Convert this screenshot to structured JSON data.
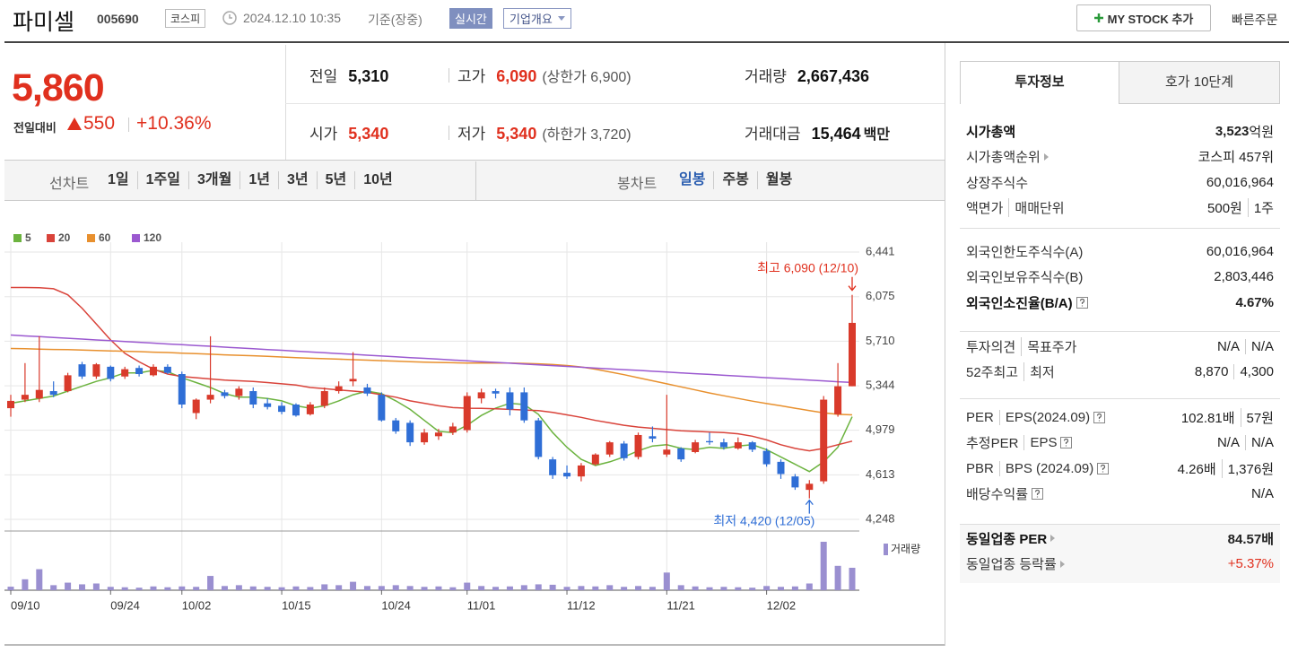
{
  "header": {
    "name": "파미셀",
    "code": "005690",
    "market": "코스피",
    "datetime": "2024.12.10 10:35",
    "basis": "기준(장중)",
    "realtime": "실시간",
    "company": "기업개요",
    "my_stock": "MY STOCK 추가",
    "quick_order": "빠른주문"
  },
  "quote": {
    "price": "5,860",
    "change_label": "전일대비",
    "change": "550",
    "rate": "+10.36%"
  },
  "stats": [
    [
      {
        "label": "전일",
        "value": "5,310"
      },
      {
        "label": "고가",
        "value": "6,090",
        "sub": "(상한가 6,900)",
        "color": "#e0301e"
      },
      {
        "label": "거래량",
        "value": "2,667,436"
      }
    ],
    [
      {
        "label": "시가",
        "value": "5,340",
        "color": "#e0301e"
      },
      {
        "label": "저가",
        "value": "5,340",
        "sub": "(하한가 3,720)",
        "color": "#e0301e"
      },
      {
        "label": "거래대금",
        "value": "15,464",
        "unit": "백만"
      }
    ]
  ],
  "period_tabs": {
    "title": "선차트",
    "items": [
      "1일",
      "1주일",
      "3개월",
      "1년",
      "3년",
      "5년",
      "10년"
    ]
  },
  "candle_tabs": {
    "title": "봉차트",
    "items": [
      "일봉",
      "주봉",
      "월봉"
    ],
    "active": 0
  },
  "chart_data": {
    "type": "candlestick",
    "categories": [
      "09/10",
      null,
      null,
      null,
      null,
      null,
      null,
      "09/24",
      null,
      null,
      null,
      null,
      "10/02",
      null,
      null,
      null,
      null,
      null,
      null,
      "10/15",
      null,
      null,
      null,
      null,
      null,
      null,
      "10/24",
      null,
      null,
      null,
      null,
      null,
      "11/01",
      null,
      null,
      null,
      null,
      null,
      null,
      "11/12",
      null,
      null,
      null,
      null,
      null,
      null,
      "11/21",
      null,
      null,
      null,
      null,
      null,
      null,
      "12/02",
      null,
      null,
      null,
      null,
      null,
      null
    ],
    "open": [
      5160,
      5230,
      5240,
      5300,
      5300,
      5520,
      5420,
      5500,
      5420,
      5490,
      5430,
      5500,
      5440,
      5120,
      5230,
      5290,
      5260,
      5300,
      5200,
      5180,
      5190,
      5110,
      5180,
      5300,
      5380,
      5330,
      5270,
      5060,
      5040,
      4880,
      4930,
      4960,
      4980,
      5240,
      5300,
      5290,
      5290,
      5060,
      4740,
      4630,
      4600,
      4700,
      4780,
      4870,
      4760,
      4930,
      4780,
      4830,
      4800,
      4890,
      4880,
      4830,
      4880,
      4810,
      4720,
      4600,
      4490,
      4560,
      5110,
      5340
    ],
    "high": [
      5270,
      5530,
      5750,
      5380,
      5450,
      5540,
      5530,
      5510,
      5500,
      5510,
      5520,
      5520,
      5460,
      5240,
      5750,
      5310,
      5340,
      5330,
      5240,
      5210,
      5200,
      5210,
      5330,
      5380,
      5620,
      5360,
      5290,
      5080,
      5060,
      4990,
      4990,
      5040,
      5290,
      5320,
      5320,
      5330,
      5330,
      5080,
      4760,
      4690,
      4710,
      4790,
      4890,
      4890,
      4960,
      5010,
      5270,
      4840,
      4900,
      4960,
      4910,
      4920,
      4890,
      4830,
      4740,
      4620,
      4570,
      5260,
      5530,
      6090
    ],
    "low": [
      5090,
      5210,
      5210,
      5250,
      5290,
      5400,
      5400,
      5380,
      5400,
      5420,
      5420,
      5440,
      5160,
      5070,
      5200,
      5240,
      5230,
      5160,
      5150,
      5110,
      5090,
      5100,
      5160,
      5280,
      5340,
      5260,
      5050,
      4950,
      4850,
      4860,
      4900,
      4940,
      4960,
      5200,
      5240,
      5100,
      5040,
      4740,
      4580,
      4580,
      4560,
      4690,
      4760,
      4730,
      4740,
      4880,
      4760,
      4720,
      4790,
      4860,
      4820,
      4820,
      4800,
      4680,
      4580,
      4490,
      4420,
      4540,
      5090,
      5340
    ],
    "close": [
      5220,
      5270,
      5310,
      5270,
      5430,
      5420,
      5520,
      5400,
      5480,
      5440,
      5500,
      5450,
      5190,
      5230,
      5270,
      5260,
      5320,
      5190,
      5170,
      5130,
      5100,
      5190,
      5300,
      5340,
      5400,
      5280,
      5060,
      4970,
      4880,
      4960,
      4960,
      5010,
      5260,
      5290,
      5280,
      5150,
      5060,
      4760,
      4610,
      4600,
      4690,
      4780,
      4880,
      4750,
      4940,
      4910,
      4820,
      4740,
      4880,
      4880,
      4840,
      4880,
      4820,
      4700,
      4620,
      4510,
      4540,
      5230,
      5340,
      5860
    ],
    "up_color": "#d93a2b",
    "down_color": "#2f6ed6",
    "moving_averages": [
      {
        "name": "5",
        "color": "#6cb33f",
        "values": [
          5200,
          5220,
          5240,
          5260,
          5300,
          5340,
          5380,
          5410,
          5450,
          5450,
          5470,
          5460,
          5410,
          5370,
          5330,
          5280,
          5250,
          5250,
          5240,
          5220,
          5180,
          5160,
          5180,
          5220,
          5270,
          5300,
          5280,
          5220,
          5150,
          5060,
          4970,
          4960,
          5020,
          5100,
          5160,
          5200,
          5190,
          5110,
          4960,
          4840,
          4740,
          4690,
          4720,
          4760,
          4810,
          4850,
          4860,
          4830,
          4820,
          4840,
          4830,
          4850,
          4860,
          4820,
          4760,
          4700,
          4640,
          4720,
          4840,
          5090
        ]
      },
      {
        "name": "20",
        "color": "#d9433a",
        "values": [
          6150,
          6150,
          6148,
          6140,
          6090,
          5980,
          5850,
          5720,
          5610,
          5540,
          5480,
          5440,
          5420,
          5410,
          5400,
          5390,
          5385,
          5380,
          5370,
          5360,
          5350,
          5330,
          5320,
          5310,
          5300,
          5290,
          5270,
          5250,
          5220,
          5200,
          5180,
          5165,
          5160,
          5158,
          5155,
          5150,
          5145,
          5140,
          5125,
          5105,
          5085,
          5060,
          5040,
          5020,
          5005,
          4995,
          4985,
          4975,
          4970,
          4965,
          4960,
          4950,
          4930,
          4900,
          4860,
          4830,
          4810,
          4830,
          4860,
          4890
        ]
      },
      {
        "name": "60",
        "color": "#e8902e",
        "values": [
          5650,
          5648,
          5645,
          5642,
          5640,
          5637,
          5634,
          5630,
          5627,
          5624,
          5620,
          5617,
          5612,
          5608,
          5603,
          5598,
          5594,
          5590,
          5585,
          5580,
          5575,
          5570,
          5566,
          5562,
          5558,
          5554,
          5550,
          5546,
          5542,
          5538,
          5535,
          5533,
          5531,
          5530,
          5530,
          5530,
          5528,
          5524,
          5518,
          5510,
          5498,
          5480,
          5458,
          5435,
          5410,
          5385,
          5360,
          5335,
          5310,
          5285,
          5262,
          5240,
          5218,
          5198,
          5180,
          5160,
          5140,
          5122,
          5110,
          5105
        ]
      },
      {
        "name": "120",
        "color": "#9b59d0",
        "values": [
          5760,
          5753,
          5747,
          5740,
          5734,
          5727,
          5720,
          5714,
          5707,
          5701,
          5694,
          5687,
          5681,
          5674,
          5668,
          5661,
          5654,
          5648,
          5641,
          5635,
          5628,
          5621,
          5615,
          5608,
          5602,
          5595,
          5588,
          5582,
          5575,
          5569,
          5562,
          5555,
          5549,
          5542,
          5536,
          5529,
          5522,
          5516,
          5509,
          5503,
          5496,
          5489,
          5483,
          5476,
          5470,
          5463,
          5456,
          5450,
          5443,
          5437,
          5430,
          5423,
          5417,
          5410,
          5404,
          5397,
          5390,
          5384,
          5377,
          5371
        ]
      }
    ],
    "volume": {
      "name": "거래량",
      "color": "#9a8fd0",
      "ylim": [
        0,
        6400000
      ],
      "values": [
        420000,
        1300000,
        2500000,
        600000,
        900000,
        700000,
        800000,
        400000,
        350000,
        300000,
        450000,
        350000,
        450000,
        400000,
        1700000,
        500000,
        600000,
        450000,
        400000,
        350000,
        450000,
        380000,
        700000,
        600000,
        1000000,
        500000,
        500000,
        600000,
        500000,
        400000,
        450000,
        350000,
        900000,
        500000,
        400000,
        450000,
        600000,
        700000,
        650000,
        400000,
        500000,
        450000,
        600000,
        400000,
        500000,
        400000,
        2100000,
        600000,
        450000,
        350000,
        400000,
        350000,
        300000,
        500000,
        400000,
        450000,
        800000,
        5760000,
        2900000,
        2667436
      ]
    },
    "ylim": [
      4248,
      6441
    ],
    "yticks": [
      {
        "value": 6441,
        "label": "6,441"
      },
      {
        "value": 6075,
        "label": "6,075"
      },
      {
        "value": 5710,
        "label": "5,710"
      },
      {
        "value": 5344,
        "label": "5,344"
      },
      {
        "value": 4979,
        "label": "4,979"
      },
      {
        "value": 4613,
        "label": "4,613"
      },
      {
        "value": 4248,
        "label": "4,248"
      }
    ],
    "grid": true,
    "annotations": {
      "high": {
        "text": "최고 6,090 (12/10)",
        "color": "#e0301e"
      },
      "low": {
        "text": "최저 4,420 (12/05)",
        "color": "#2f6ed6"
      }
    }
  },
  "info_tabs": [
    "투자정보",
    "호가 10단계"
  ],
  "info": [
    [
      {
        "label": [
          "시가총액"
        ],
        "value": [
          "3,523"
        ],
        "unit": "억원",
        "bold": true
      },
      {
        "label": [
          "시가총액순위"
        ],
        "arrow": true,
        "value": [
          "코스피 457위"
        ]
      },
      {
        "label": [
          "상장주식수"
        ],
        "value": [
          "60,016,964"
        ]
      },
      {
        "label": [
          "액면가",
          "매매단위"
        ],
        "value": [
          "500원",
          "1주"
        ]
      }
    ],
    [
      {
        "label": [
          "외국인한도주식수(A)"
        ],
        "value": [
          "60,016,964"
        ]
      },
      {
        "label": [
          "외국인보유주식수(B)"
        ],
        "value": [
          "2,803,446"
        ]
      },
      {
        "label": [
          "외국인소진율(B/A)"
        ],
        "help": true,
        "value": [
          "4.67%"
        ],
        "bold": true
      }
    ],
    [
      {
        "label": [
          "투자의견",
          "목표주가"
        ],
        "value": [
          "N/A",
          "N/A"
        ]
      },
      {
        "label": [
          "52주최고",
          "최저"
        ],
        "value": [
          "8,870",
          "4,300"
        ]
      }
    ],
    [
      {
        "label": [
          "PER",
          "EPS(2024.09)"
        ],
        "help": true,
        "value": [
          "102.81배",
          "57원"
        ]
      },
      {
        "label": [
          "추정PER",
          "EPS"
        ],
        "help": true,
        "value": [
          "N/A",
          "N/A"
        ]
      },
      {
        "label": [
          "PBR",
          "BPS (2024.09)"
        ],
        "help": true,
        "value": [
          "4.26배",
          "1,376원"
        ]
      },
      {
        "label": [
          "배당수익률"
        ],
        "help": true,
        "value": [
          "N/A"
        ]
      }
    ],
    [
      {
        "label": [
          "동일업종 PER"
        ],
        "arrow": true,
        "value": [
          "84.57배"
        ],
        "bold": true
      },
      {
        "label": [
          "동일업종 등락률"
        ],
        "arrow": true,
        "value": [
          "+5.37%"
        ],
        "color": "#e0301e"
      }
    ]
  ]
}
